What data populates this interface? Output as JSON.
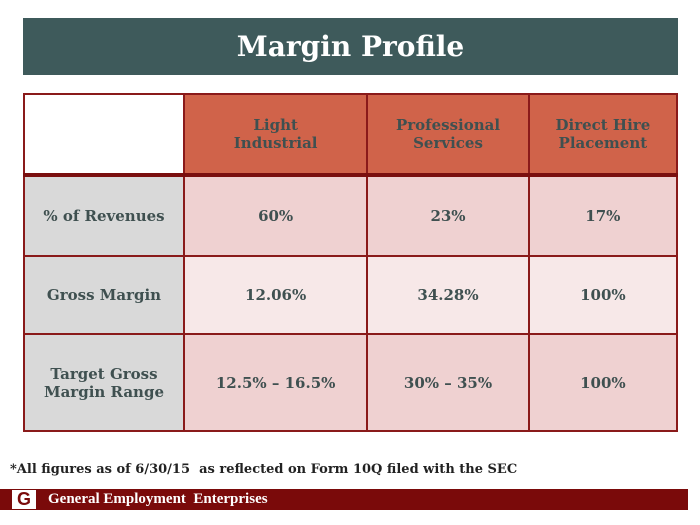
{
  "title": "Margin Profile",
  "columns": [
    "Light\nIndustrial",
    "Professional\nServices",
    "Direct Hire\nPlacement"
  ],
  "rows": [
    {
      "label": "% of Revenues",
      "values": [
        "60%",
        "23%",
        "17%"
      ]
    },
    {
      "label": "Gross Margin",
      "values": [
        "12.06%",
        "34.28%",
        "100%"
      ]
    },
    {
      "label": "Target Gross\nMargin Range",
      "values": [
        "12.5% – 16.5%",
        "30% – 35%",
        "100%"
      ]
    }
  ],
  "footnote": "*All figures as of 6/30/15  as reflected on Form 10Q filed with the SEC",
  "footer": {
    "logo": "G",
    "company": "General Employment  Enterprises"
  }
}
